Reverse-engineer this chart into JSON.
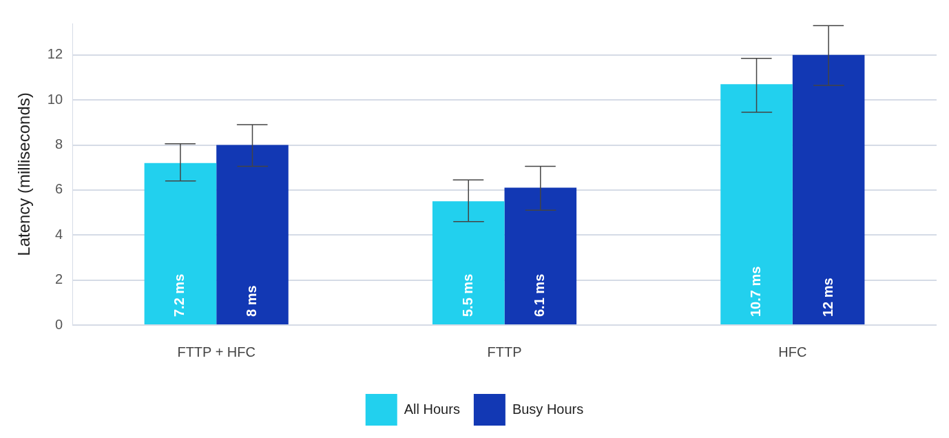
{
  "chart_data": {
    "type": "bar",
    "ylabel": "Latency (milliseconds)",
    "categories": [
      "FTTP + HFC",
      "FTTP",
      "HFC"
    ],
    "series": [
      {
        "name": "All Hours",
        "color": "#22d0ee",
        "values": [
          7.2,
          5.5,
          10.7
        ],
        "value_labels": [
          "7.2 ms",
          "5.5 ms",
          "10.7 ms"
        ],
        "errors": [
          [
            6.4,
            8.05
          ],
          [
            4.6,
            6.45
          ],
          [
            9.45,
            11.85
          ]
        ]
      },
      {
        "name": "Busy Hours",
        "color": "#1238b4",
        "values": [
          8,
          6.1,
          12
        ],
        "value_labels": [
          "8 ms",
          "6.1 ms",
          "12 ms"
        ],
        "errors": [
          [
            7.05,
            8.9
          ],
          [
            5.1,
            7.05
          ],
          [
            10.65,
            13.3
          ]
        ]
      }
    ],
    "ylim": [
      0,
      13.4
    ],
    "yticks": [
      0,
      2,
      4,
      6,
      8,
      10,
      12
    ],
    "grid": "y",
    "legend": "bottom"
  }
}
